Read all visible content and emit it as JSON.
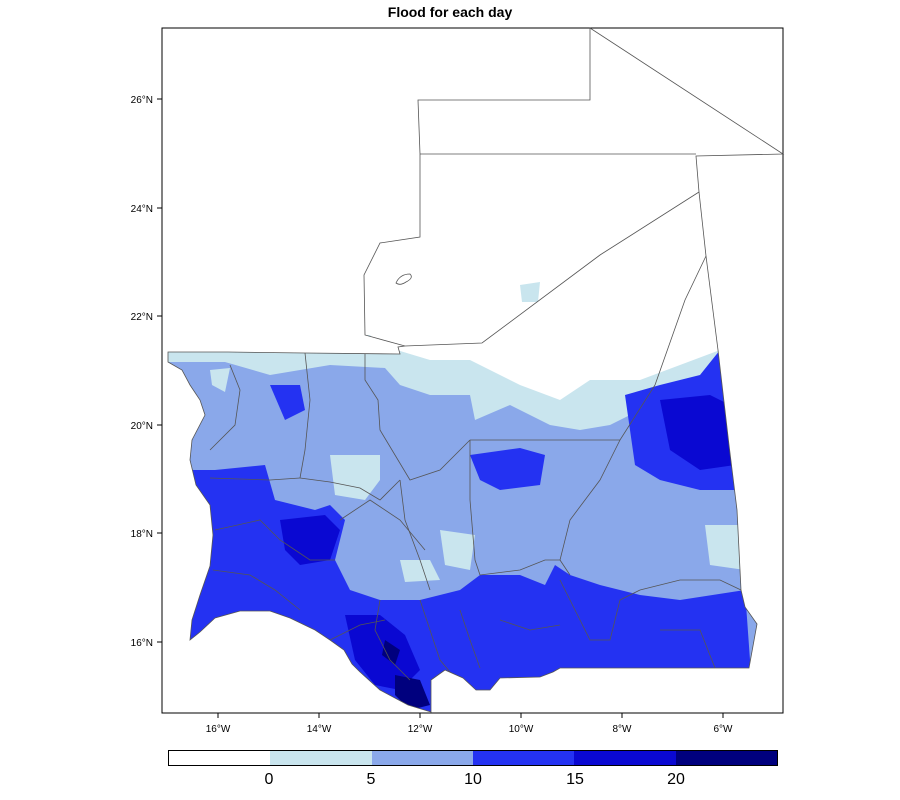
{
  "title": "Flood for each day",
  "axes": {
    "x_ticks": [
      "16°W",
      "14°W",
      "12°W",
      "10°W",
      "8°W",
      "6°W"
    ],
    "y_ticks": [
      "26°N",
      "24°N",
      "22°N",
      "20°N",
      "18°N",
      "16°N"
    ]
  },
  "legend": {
    "colors": [
      "#ffffff",
      "#c9e5ee",
      "#8aa8ea",
      "#2432f2",
      "#0a08d2",
      "#00007e"
    ],
    "labels": [
      "0",
      "5",
      "10",
      "15",
      "20"
    ]
  },
  "chart_data": {
    "type": "heatmap",
    "title": "Flood for each day",
    "xlabel": "",
    "ylabel": "",
    "xlim": [
      -17,
      -5.2
    ],
    "ylim": [
      14.75,
      27.3
    ],
    "color_scale": {
      "breaks": [
        0,
        5,
        10,
        15,
        20
      ],
      "colors": [
        "#ffffff",
        "#c9e5ee",
        "#8aa8ea",
        "#2432f2",
        "#0a08d2",
        "#00007e"
      ]
    },
    "regions": [
      {
        "area": "far north (above ~21.5°N)",
        "class": "0"
      },
      {
        "area": "northern fringe (~20–21°N)",
        "class": "0–5"
      },
      {
        "area": "central belt",
        "class": "5–10"
      },
      {
        "area": "southern / Senegal river belt",
        "class": "10–15"
      },
      {
        "area": "east (~6.5°W, 19.5–21°N)",
        "class": "15–20"
      },
      {
        "area": "southwest (~12.3°W, 15.5°N)",
        "class": "20+"
      }
    ]
  }
}
